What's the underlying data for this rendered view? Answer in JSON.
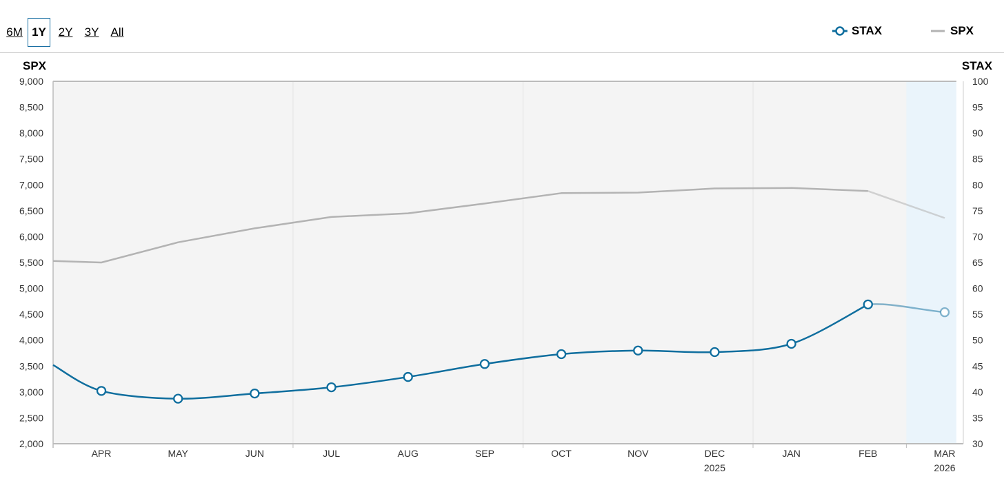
{
  "range_selector": {
    "options": [
      "6M",
      "1Y",
      "2Y",
      "3Y",
      "All"
    ],
    "selected": "1Y"
  },
  "legend": {
    "stax_label": "STAX",
    "spx_label": "SPX"
  },
  "colors": {
    "stax": "#0f6e9e",
    "spx": "#b3b3b3",
    "plot_background": "#f4f4f4",
    "forecast_shade": "#eaf4fb"
  },
  "chart_data": {
    "type": "line",
    "categories": [
      "APR",
      "MAY",
      "JUN",
      "JUL",
      "AUG",
      "SEP",
      "OCT",
      "NOV",
      "DEC",
      "JAN",
      "FEB",
      "MAR"
    ],
    "year_labels": [
      {
        "category": "DEC",
        "label": "2025"
      },
      {
        "category": "MAR",
        "label": "2026"
      }
    ],
    "left_axis": {
      "title": "SPX",
      "ylim": [
        2000,
        9000
      ],
      "ticks": [
        "2,000",
        "2,500",
        "3,000",
        "3,500",
        "4,000",
        "4,500",
        "5,000",
        "5,500",
        "6,000",
        "6,500",
        "7,000",
        "7,500",
        "8,000",
        "8,500",
        "9,000"
      ]
    },
    "right_axis": {
      "title": "STAX",
      "ylim": [
        30,
        100
      ],
      "ticks": [
        "30",
        "35",
        "40",
        "45",
        "50",
        "55",
        "60",
        "65",
        "70",
        "75",
        "80",
        "85",
        "90",
        "95",
        "100"
      ]
    },
    "series": [
      {
        "name": "SPX",
        "axis": "left",
        "start_value": 5530,
        "values": [
          5500,
          5890,
          6160,
          6380,
          6450,
          6640,
          6840,
          6850,
          6930,
          6940,
          6880,
          6360
        ]
      },
      {
        "name": "STAX",
        "axis": "right",
        "start_value": 45.2,
        "values": [
          40.2,
          38.7,
          39.7,
          40.9,
          42.9,
          45.4,
          47.3,
          48.0,
          47.7,
          49.3,
          56.9,
          55.4
        ]
      }
    ],
    "grid": "vertical bands every three months",
    "legend_position": "top-right",
    "highlight": "latest month (MAR) shaded"
  }
}
